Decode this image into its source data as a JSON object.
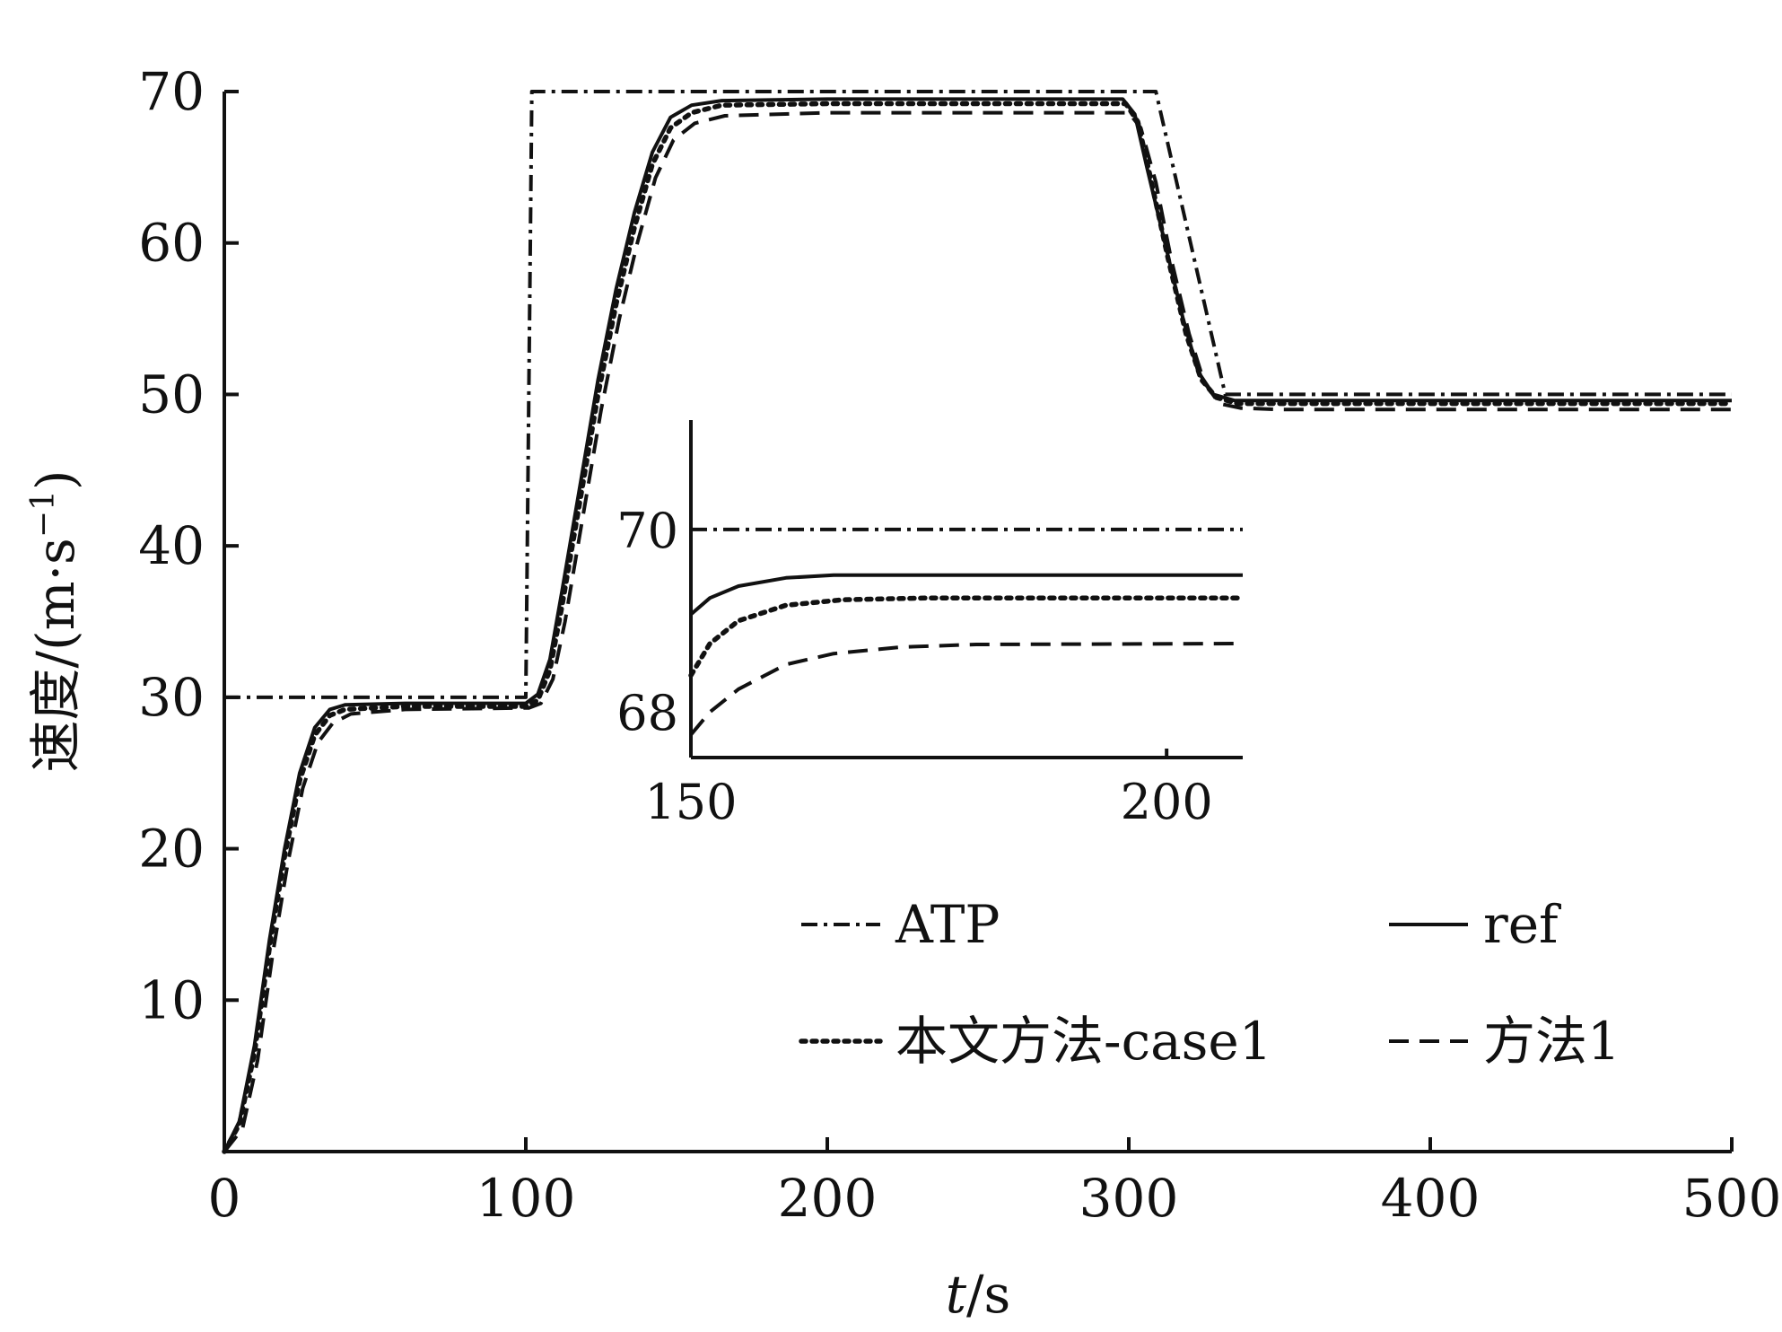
{
  "chart_data": {
    "type": "line",
    "xlabel_italic": "t",
    "xlabel_unit": "/s",
    "ylabel": "速度/(m·s",
    "ylabel_sup": "−1",
    "ylabel_close": ")",
    "xlim": [
      0,
      500
    ],
    "ylim": [
      0,
      70
    ],
    "xticks": [
      0,
      100,
      200,
      300,
      400,
      500
    ],
    "yticks": [
      10,
      20,
      30,
      40,
      50,
      60,
      70
    ],
    "legend_position": "lower-right",
    "series": [
      {
        "name": "ATP",
        "style": "dashdot",
        "points": [
          [
            0,
            30
          ],
          [
            100,
            30
          ],
          [
            102,
            70
          ],
          [
            309,
            70
          ],
          [
            332,
            50
          ],
          [
            500,
            50
          ]
        ]
      },
      {
        "name": "ref",
        "style": "solid",
        "points": [
          [
            0,
            0
          ],
          [
            5,
            2
          ],
          [
            10,
            7
          ],
          [
            15,
            14
          ],
          [
            20,
            20
          ],
          [
            25,
            25
          ],
          [
            30,
            28
          ],
          [
            35,
            29.2
          ],
          [
            40,
            29.5
          ],
          [
            60,
            29.6
          ],
          [
            100,
            29.6
          ],
          [
            104,
            30.2
          ],
          [
            108,
            32.5
          ],
          [
            112,
            37
          ],
          [
            118,
            44
          ],
          [
            124,
            51
          ],
          [
            130,
            57
          ],
          [
            136,
            62
          ],
          [
            142,
            66
          ],
          [
            148,
            68.3
          ],
          [
            155,
            69.1
          ],
          [
            165,
            69.4
          ],
          [
            200,
            69.5
          ],
          [
            298,
            69.5
          ],
          [
            302,
            68.5
          ],
          [
            306,
            65
          ],
          [
            312,
            60
          ],
          [
            318,
            55
          ],
          [
            323,
            51.5
          ],
          [
            328,
            50
          ],
          [
            335,
            49.6
          ],
          [
            350,
            49.6
          ],
          [
            500,
            49.6
          ]
        ]
      },
      {
        "name": "本文方法-case1",
        "style": "dotted",
        "points": [
          [
            0,
            0
          ],
          [
            5,
            1.8
          ],
          [
            10,
            6.5
          ],
          [
            15,
            13.5
          ],
          [
            20,
            19.5
          ],
          [
            25,
            24.5
          ],
          [
            30,
            27.5
          ],
          [
            35,
            28.8
          ],
          [
            40,
            29.2
          ],
          [
            60,
            29.4
          ],
          [
            100,
            29.4
          ],
          [
            104,
            29.8
          ],
          [
            108,
            31.8
          ],
          [
            112,
            36
          ],
          [
            118,
            43
          ],
          [
            124,
            50
          ],
          [
            130,
            56
          ],
          [
            136,
            61
          ],
          [
            142,
            65.2
          ],
          [
            148,
            67.6
          ],
          [
            155,
            68.6
          ],
          [
            165,
            69.1
          ],
          [
            200,
            69.2
          ],
          [
            299,
            69.2
          ],
          [
            303,
            68
          ],
          [
            307,
            64.5
          ],
          [
            313,
            59
          ],
          [
            319,
            54
          ],
          [
            324,
            51
          ],
          [
            329,
            49.8
          ],
          [
            336,
            49.4
          ],
          [
            350,
            49.4
          ],
          [
            500,
            49.4
          ]
        ]
      },
      {
        "name": "方法1",
        "style": "dashed",
        "points": [
          [
            0,
            0
          ],
          [
            6,
            1.5
          ],
          [
            11,
            6
          ],
          [
            16,
            13
          ],
          [
            21,
            19
          ],
          [
            26,
            24
          ],
          [
            31,
            27
          ],
          [
            36,
            28.3
          ],
          [
            42,
            28.9
          ],
          [
            60,
            29.2
          ],
          [
            101,
            29.3
          ],
          [
            105,
            29.6
          ],
          [
            109,
            31.2
          ],
          [
            113,
            35
          ],
          [
            119,
            42
          ],
          [
            125,
            49
          ],
          [
            131,
            55
          ],
          [
            137,
            60
          ],
          [
            143,
            64.3
          ],
          [
            149,
            66.8
          ],
          [
            156,
            67.9
          ],
          [
            166,
            68.4
          ],
          [
            200,
            68.6
          ],
          [
            300,
            68.6
          ],
          [
            304,
            67.6
          ],
          [
            309,
            64
          ],
          [
            314,
            59
          ],
          [
            320,
            54
          ],
          [
            325,
            50.8
          ],
          [
            330,
            49.4
          ],
          [
            337,
            49.1
          ],
          [
            350,
            49
          ],
          [
            500,
            49
          ]
        ]
      }
    ],
    "inset": {
      "xlim": [
        150,
        208
      ],
      "ylim": [
        67.5,
        71.2
      ],
      "xticks": [
        150,
        200
      ],
      "yticks": [
        68,
        70
      ],
      "series": [
        {
          "name": "ATP",
          "style": "dashdot",
          "points": [
            [
              150,
              70
            ],
            [
              208,
              70
            ]
          ]
        },
        {
          "name": "ref",
          "style": "solid",
          "points": [
            [
              150,
              69.07
            ],
            [
              152,
              69.25
            ],
            [
              155,
              69.38
            ],
            [
              160,
              69.47
            ],
            [
              165,
              69.5
            ],
            [
              175,
              69.5
            ],
            [
              208,
              69.5
            ]
          ]
        },
        {
          "name": "本文方法-case1",
          "style": "dotted",
          "points": [
            [
              150,
              68.4
            ],
            [
              152,
              68.75
            ],
            [
              155,
              69.0
            ],
            [
              160,
              69.17
            ],
            [
              166,
              69.23
            ],
            [
              175,
              69.25
            ],
            [
              208,
              69.25
            ]
          ]
        },
        {
          "name": "方法1",
          "style": "dashed",
          "points": [
            [
              150,
              67.75
            ],
            [
              152,
              68.0
            ],
            [
              155,
              68.25
            ],
            [
              160,
              68.52
            ],
            [
              165,
              68.64
            ],
            [
              172,
              68.71
            ],
            [
              180,
              68.74
            ],
            [
              208,
              68.75
            ]
          ]
        }
      ]
    }
  }
}
